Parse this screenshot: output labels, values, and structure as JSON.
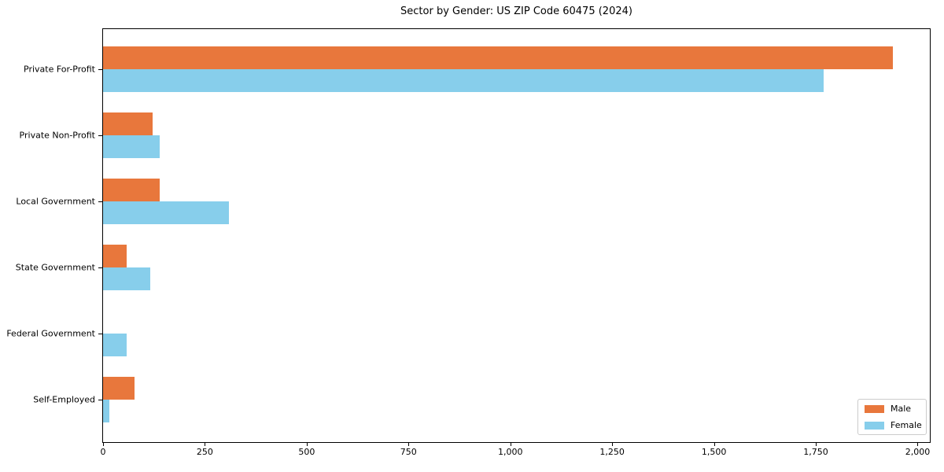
{
  "chart_data": {
    "type": "bar",
    "orientation": "horizontal",
    "title": "Sector by Gender: US ZIP Code 60475 (2024)",
    "categories": [
      "Private For-Profit",
      "Private Non-Profit",
      "Local Government",
      "State Government",
      "Federal Government",
      "Self-Employed"
    ],
    "series": [
      {
        "name": "Male",
        "color": "#E8773C",
        "values": [
          1940,
          122,
          140,
          58,
          0,
          77
        ]
      },
      {
        "name": "Female",
        "color": "#87CEEB",
        "values": [
          1770,
          140,
          310,
          116,
          57,
          16
        ]
      }
    ],
    "x_ticks": [
      0,
      250,
      500,
      750,
      1000,
      1250,
      1500,
      1750,
      2000
    ],
    "x_tick_labels": [
      "0",
      "250",
      "500",
      "750",
      "1,000",
      "1,250",
      "1,500",
      "1,750",
      "2,000"
    ],
    "xlim": [
      0,
      2030
    ],
    "xlabel": "",
    "ylabel": "",
    "grid": false,
    "legend": {
      "position": "lower-right",
      "entries": [
        "Male",
        "Female"
      ]
    }
  }
}
